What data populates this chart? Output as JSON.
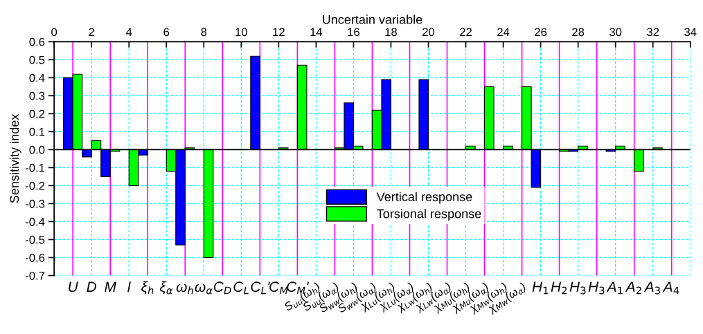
{
  "chart_data": {
    "type": "bar",
    "x2label": "Uncertain variable",
    "ylabel": "Sensitivity index",
    "categories": [
      "U",
      "D",
      "M",
      "I",
      "ξ$_{h}$",
      "ξ$_{α}$",
      "ω$_{h}$",
      "ω$_{α}$",
      "C$_{D}$",
      "C$_{L}$",
      "C$_{L}$'",
      "C$_{M}$",
      "C$_{M}$'",
      "S$_{uu}$(ω$_{h}$)",
      "S$_{uu}$(ω$_{α}$)",
      "S$_{ww}$(ω$_{h}$)",
      "S$_{ww}$(ω$_{α}$)",
      "χ$_{Lu}$(ω$_{h}$)",
      "χ$_{Lu}$(ω$_{α}$)",
      "χ$_{Lw}$(ω$_{h}$)",
      "χ$_{Lw}$(ω$_{α}$)",
      "χ$_{Mu}$(ω$_{h}$)",
      "χ$_{Mu}$(ω$_{α}$)",
      "χ$_{Mw}$(ω$_{h}$)",
      "χ$_{Mw}$(ω$_{α}$)",
      "H$_{1}$",
      "H$_{2}$",
      "H$_{3}$",
      "H$_{3}$",
      "A$_{1}$",
      "A$_{2}$",
      "A$_{3}$",
      "A$_{4}$"
    ],
    "x2lim": [
      0,
      34
    ],
    "x2ticks": [
      0,
      2,
      4,
      6,
      8,
      10,
      12,
      14,
      16,
      18,
      20,
      22,
      24,
      26,
      28,
      30,
      32,
      34
    ],
    "ylim": [
      -0.7,
      0.6
    ],
    "yticks": [
      -0.7,
      -0.6,
      -0.5,
      -0.4,
      -0.3,
      -0.2,
      -0.1,
      {
        "value": 0,
        "label": "0.0"
      },
      0.1,
      0.2,
      0.3,
      0.4,
      0.5,
      0.6
    ],
    "series": [
      {
        "name": "Vertical response",
        "color": "#0000ff",
        "values": [
          0.4,
          -0.04,
          -0.15,
          null,
          -0.03,
          null,
          -0.53,
          null,
          null,
          null,
          0.52,
          null,
          null,
          null,
          null,
          0.26,
          null,
          0.39,
          null,
          0.39,
          null,
          null,
          null,
          null,
          null,
          -0.21,
          null,
          -0.01,
          null,
          -0.01,
          null,
          null,
          null
        ]
      },
      {
        "name": "Torsional response",
        "color": "#00ff00",
        "values": [
          0.42,
          0.05,
          -0.01,
          -0.2,
          null,
          -0.12,
          0.01,
          -0.6,
          null,
          null,
          null,
          0.01,
          0.47,
          null,
          0.01,
          0.02,
          0.22,
          null,
          null,
          null,
          null,
          0.02,
          0.35,
          0.02,
          0.35,
          null,
          -0.01,
          0.02,
          null,
          0.02,
          -0.12,
          0.01,
          null
        ]
      }
    ],
    "grid": true,
    "legend": "bottom"
  }
}
